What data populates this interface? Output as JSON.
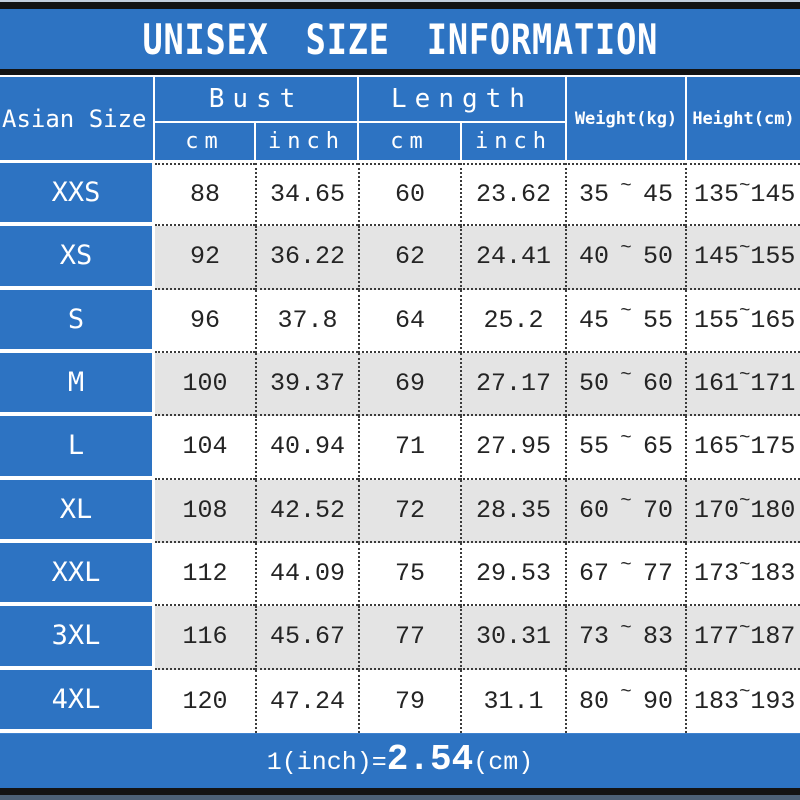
{
  "chart_data": {
    "type": "table",
    "title": "UNISEX SIZE INFORMATION",
    "corner_header": "Asian Size",
    "column_groups": [
      {
        "label": "Bust",
        "sub": [
          "cm",
          "inch"
        ]
      },
      {
        "label": "Length",
        "sub": [
          "cm",
          "inch"
        ]
      },
      {
        "label": "Weight(kg)"
      },
      {
        "label": "Height(cm)"
      }
    ],
    "range_separator": "~",
    "rows": [
      {
        "size": "XXS",
        "bust_cm": "88",
        "bust_inch": "34.65",
        "length_cm": "60",
        "length_inch": "23.62",
        "weight_min": "35",
        "weight_max": "45",
        "height_min": "135",
        "height_max": "145"
      },
      {
        "size": "XS",
        "bust_cm": "92",
        "bust_inch": "36.22",
        "length_cm": "62",
        "length_inch": "24.41",
        "weight_min": "40",
        "weight_max": "50",
        "height_min": "145",
        "height_max": "155"
      },
      {
        "size": "S",
        "bust_cm": "96",
        "bust_inch": "37.8",
        "length_cm": "64",
        "length_inch": "25.2",
        "weight_min": "45",
        "weight_max": "55",
        "height_min": "155",
        "height_max": "165"
      },
      {
        "size": "M",
        "bust_cm": "100",
        "bust_inch": "39.37",
        "length_cm": "69",
        "length_inch": "27.17",
        "weight_min": "50",
        "weight_max": "60",
        "height_min": "161",
        "height_max": "171"
      },
      {
        "size": "L",
        "bust_cm": "104",
        "bust_inch": "40.94",
        "length_cm": "71",
        "length_inch": "27.95",
        "weight_min": "55",
        "weight_max": "65",
        "height_min": "165",
        "height_max": "175"
      },
      {
        "size": "XL",
        "bust_cm": "108",
        "bust_inch": "42.52",
        "length_cm": "72",
        "length_inch": "28.35",
        "weight_min": "60",
        "weight_max": "70",
        "height_min": "170",
        "height_max": "180"
      },
      {
        "size": "XXL",
        "bust_cm": "112",
        "bust_inch": "44.09",
        "length_cm": "75",
        "length_inch": "29.53",
        "weight_min": "67",
        "weight_max": "77",
        "height_min": "173",
        "height_max": "183"
      },
      {
        "size": "3XL",
        "bust_cm": "116",
        "bust_inch": "45.67",
        "length_cm": "77",
        "length_inch": "30.31",
        "weight_min": "73",
        "weight_max": "83",
        "height_min": "177",
        "height_max": "187"
      },
      {
        "size": "4XL",
        "bust_cm": "120",
        "bust_inch": "47.24",
        "length_cm": "79",
        "length_inch": "31.1",
        "weight_min": "80",
        "weight_max": "90",
        "height_min": "183",
        "height_max": "193"
      }
    ],
    "footnote": "1(inch)=2.54(cm)"
  },
  "footer": {
    "conversion_prefix": "1(inch)=",
    "conversion_value": "2.54",
    "conversion_suffix": "(cm)"
  },
  "colors": {
    "primary_blue": "#2d73c2",
    "alt_row_gray": "#e4e4e4",
    "black_bar": "#131313",
    "white": "#ffffff"
  }
}
